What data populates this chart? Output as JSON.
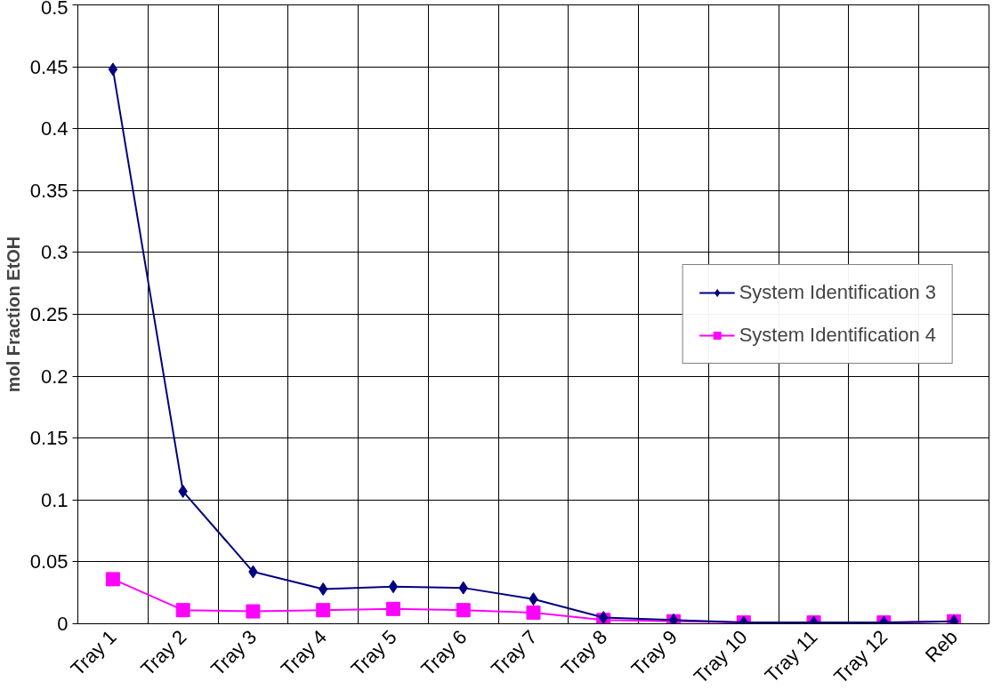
{
  "chart_data": {
    "type": "line",
    "ylabel": "mol Fraction EtOH",
    "categories": [
      "Tray 1",
      "Tray 2",
      "Tray 3",
      "Tray 4",
      "Tray 5",
      "Tray 6",
      "Tray 7",
      "Tray 8",
      "Tray 9",
      "Tray 10",
      "Tray 11",
      "Tray 12",
      "Reb"
    ],
    "series": [
      {
        "name": "System Identification 3",
        "color": "#000080",
        "marker": "diamond",
        "values": [
          0.448,
          0.107,
          0.042,
          0.028,
          0.03,
          0.029,
          0.02,
          0.005,
          0.003,
          0.001,
          0.001,
          0.001,
          0.002
        ]
      },
      {
        "name": "System Identification 4",
        "color": "#ff00ff",
        "marker": "square",
        "values": [
          0.036,
          0.011,
          0.01,
          0.011,
          0.012,
          0.011,
          0.009,
          0.003,
          0.002,
          0.001,
          0.001,
          0.001,
          0.002
        ]
      }
    ],
    "ylim": [
      0,
      0.5
    ],
    "yticks": [
      0,
      {
        "value": 0.05,
        "label": "0.05"
      },
      0.1,
      0.15,
      0.2,
      0.25,
      0.3,
      0.35,
      0.4,
      0.45,
      0.5
    ],
    "grid": true,
    "legend": "right"
  }
}
